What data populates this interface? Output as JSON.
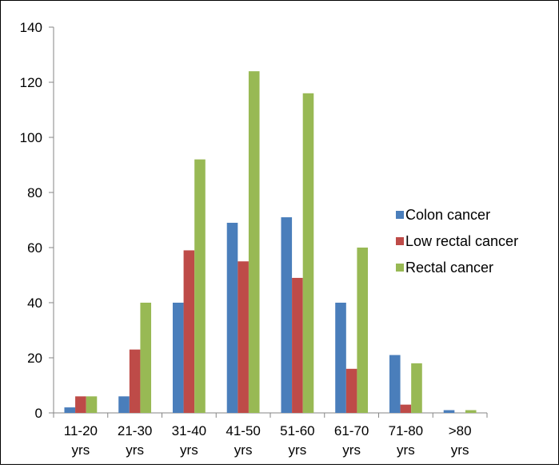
{
  "chart_data": {
    "type": "bar",
    "title": "",
    "xlabel": "",
    "ylabel": "",
    "categories": [
      [
        "11-20",
        "yrs"
      ],
      [
        "21-30",
        "yrs"
      ],
      [
        "31-40",
        "yrs"
      ],
      [
        "41-50",
        "yrs"
      ],
      [
        "51-60",
        "yrs"
      ],
      [
        "61-70",
        "yrs"
      ],
      [
        "71-80",
        "yrs"
      ],
      [
        ">80",
        "yrs"
      ]
    ],
    "series": [
      {
        "name": "Colon cancer",
        "color": "#4a7ebb",
        "values": [
          2,
          6,
          40,
          69,
          71,
          40,
          21,
          1
        ]
      },
      {
        "name": "Low rectal cancer",
        "color": "#be4b48",
        "values": [
          6,
          23,
          59,
          55,
          49,
          16,
          3,
          0
        ]
      },
      {
        "name": "Rectal cancer",
        "color": "#98b954",
        "values": [
          6,
          40,
          92,
          124,
          116,
          60,
          18,
          1
        ]
      }
    ],
    "ylim": [
      0,
      140
    ],
    "yticks": [
      0,
      20,
      40,
      60,
      80,
      100,
      120,
      140
    ],
    "grid": false,
    "legend": "right"
  }
}
